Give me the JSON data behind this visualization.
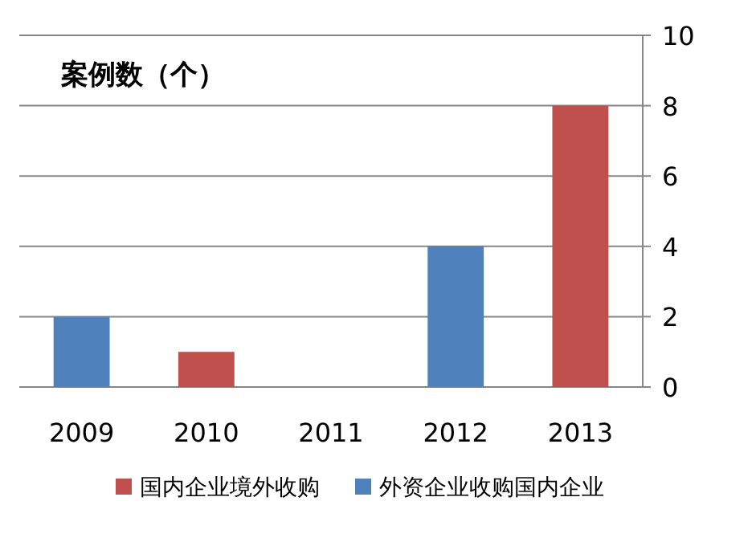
{
  "chart_data": {
    "type": "bar",
    "title": "案例数（个）",
    "categories": [
      "2009",
      "2010",
      "2011",
      "2012",
      "2013"
    ],
    "stacked": true,
    "series": [
      {
        "name": "国内企业境外收购",
        "color": "#c0504d",
        "values": [
          0,
          1,
          0,
          0,
          8
        ]
      },
      {
        "name": "外资企业收购国内企业",
        "color": "#4f81bd",
        "values": [
          2,
          0,
          0,
          4,
          0
        ]
      }
    ],
    "ylim": [
      0,
      10
    ],
    "yticks": [
      0,
      2,
      4,
      6,
      8,
      10
    ],
    "grid": "y",
    "legend": "bottom"
  }
}
